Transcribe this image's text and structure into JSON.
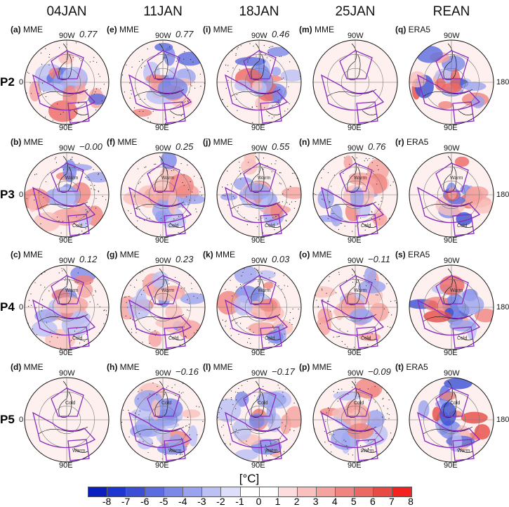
{
  "columns": [
    "04JAN",
    "11JAN",
    "18JAN",
    "25JAN",
    "REAN"
  ],
  "rows": [
    "P2",
    "P3",
    "P4",
    "P5"
  ],
  "lon_labels": {
    "top": "90W",
    "bottom": "90E",
    "left": "0",
    "right": "180"
  },
  "panels": [
    [
      {
        "letter": "a",
        "source": "MME",
        "corr": "0.77"
      },
      {
        "letter": "e",
        "source": "MME",
        "corr": "0.77"
      },
      {
        "letter": "i",
        "source": "MME",
        "corr": "0.46"
      },
      {
        "letter": "m",
        "source": "MME",
        "corr": ""
      },
      {
        "letter": "q",
        "source": "ERA5",
        "corr": ""
      }
    ],
    [
      {
        "letter": "b",
        "source": "MME",
        "corr": "−0.00",
        "regions": [
          "Warm",
          "Cold"
        ]
      },
      {
        "letter": "f",
        "source": "MME",
        "corr": "0.25",
        "regions": [
          "Warm",
          "Cold"
        ]
      },
      {
        "letter": "j",
        "source": "MME",
        "corr": "0.55",
        "regions": [
          "Warm",
          "Cold"
        ]
      },
      {
        "letter": "n",
        "source": "MME",
        "corr": "0.76",
        "regions": [
          "Warm",
          "Cold"
        ]
      },
      {
        "letter": "r",
        "source": "ERA5",
        "corr": "",
        "regions": [
          "Warm",
          "Cold"
        ]
      }
    ],
    [
      {
        "letter": "c",
        "source": "MME",
        "corr": "0.12",
        "regions": [
          "Warm",
          "Cold"
        ]
      },
      {
        "letter": "g",
        "source": "MME",
        "corr": "0.23",
        "regions": [
          "Warm",
          "Cold"
        ]
      },
      {
        "letter": "k",
        "source": "MME",
        "corr": "0.03",
        "regions": [
          "Warm",
          "Cold"
        ]
      },
      {
        "letter": "o",
        "source": "MME",
        "corr": "−0.11",
        "regions": [
          "Warm",
          "Cold"
        ]
      },
      {
        "letter": "s",
        "source": "ERA5",
        "corr": "",
        "regions": [
          "Warm",
          "Cold"
        ]
      }
    ],
    [
      {
        "letter": "d",
        "source": "MME",
        "corr": "",
        "regions": [
          "Cold",
          "Warm"
        ]
      },
      {
        "letter": "h",
        "source": "MME",
        "corr": "−0.16",
        "regions": [
          "Cold",
          "Warm"
        ]
      },
      {
        "letter": "l",
        "source": "MME",
        "corr": "−0.17",
        "regions": [
          "Cold",
          "Warm"
        ]
      },
      {
        "letter": "p",
        "source": "MME",
        "corr": "−0.09",
        "regions": [
          "Cold",
          "Warm"
        ]
      },
      {
        "letter": "t",
        "source": "ERA5",
        "corr": "",
        "regions": [
          "Cold",
          "Warm"
        ]
      }
    ]
  ],
  "colorbar": {
    "unit": "[°C]",
    "ticks": [
      "-8",
      "-7",
      "-6",
      "-5",
      "-4",
      "-3",
      "-2",
      "-1",
      "0",
      "1",
      "2",
      "3",
      "4",
      "5",
      "6",
      "7",
      "8"
    ],
    "colors": [
      "#0a1fbf",
      "#1c36cf",
      "#3a4fd6",
      "#5a6ce0",
      "#7c88e8",
      "#9aa3ef",
      "#bcc0f5",
      "#dcdefa",
      "#ffffff",
      "#ffffff",
      "#fcdcdc",
      "#f9c0bd",
      "#f5a39f",
      "#f08580",
      "#ec6863",
      "#e84a45",
      "#f52020"
    ]
  },
  "box_color": "#8a2bbf"
}
